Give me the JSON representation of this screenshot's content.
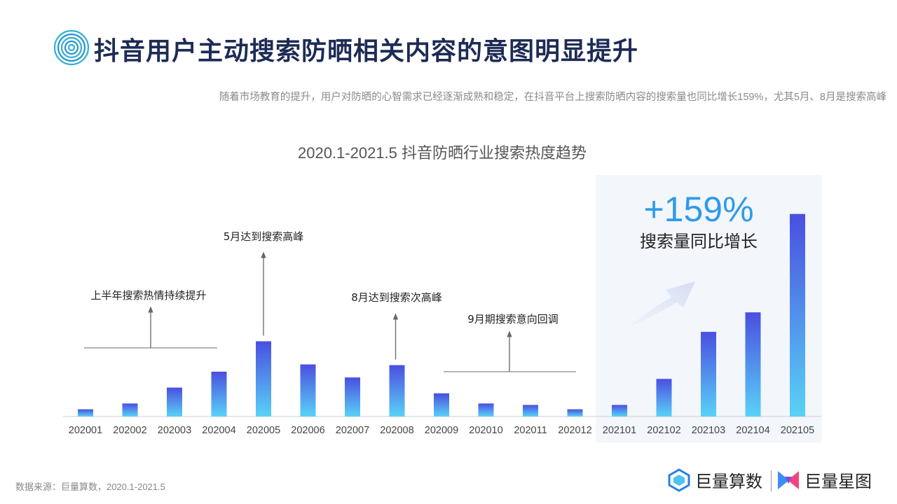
{
  "header": {
    "title": "抖音用户主动搜索防晒相关内容的意图明显提升",
    "subtitle": "随着市场教育的提升，用户对防晒的心智需求已经逐渐成熟和稳定，在抖音平台上搜索防晒内容的搜索量也同比增长159%，尤其5月、8月是搜索高峰"
  },
  "chart_data": {
    "type": "bar",
    "title": "2020.1-2021.5 抖音防晒行业搜索热度趋势",
    "xlabel": "",
    "ylabel": "",
    "categories": [
      "202001",
      "202002",
      "202003",
      "202004",
      "202005",
      "202006",
      "202007",
      "202008",
      "202009",
      "202010",
      "202011",
      "202012",
      "202101",
      "202102",
      "202103",
      "202104",
      "202105"
    ],
    "values": [
      10,
      18,
      40,
      62,
      104,
      72,
      54,
      71,
      32,
      18,
      16,
      10,
      16,
      52,
      117,
      144,
      280
    ],
    "ylim": [
      0,
      300
    ],
    "y_axis_shown": false,
    "bar_gradient": [
      "#4a4fe0",
      "#59d2f7"
    ],
    "highlight_range": [
      "202101",
      "202105"
    ],
    "annotations": [
      {
        "text": "上半年搜索热情持续提升",
        "target": "202001-202004"
      },
      {
        "text": "5月达到搜索高峰",
        "target": "202005"
      },
      {
        "text": "8月达到搜索次高峰",
        "target": "202008"
      },
      {
        "text": "9月期搜索意向回调",
        "target": "202009-202012"
      }
    ],
    "highlight": {
      "value": "+159%",
      "label": "搜索量同比增长",
      "color": "#2e9be8"
    }
  },
  "footer": {
    "source": "数据来源：巨量算数，2020.1-2021.5",
    "logo_a": "巨量算数",
    "logo_b": "巨量星图"
  }
}
